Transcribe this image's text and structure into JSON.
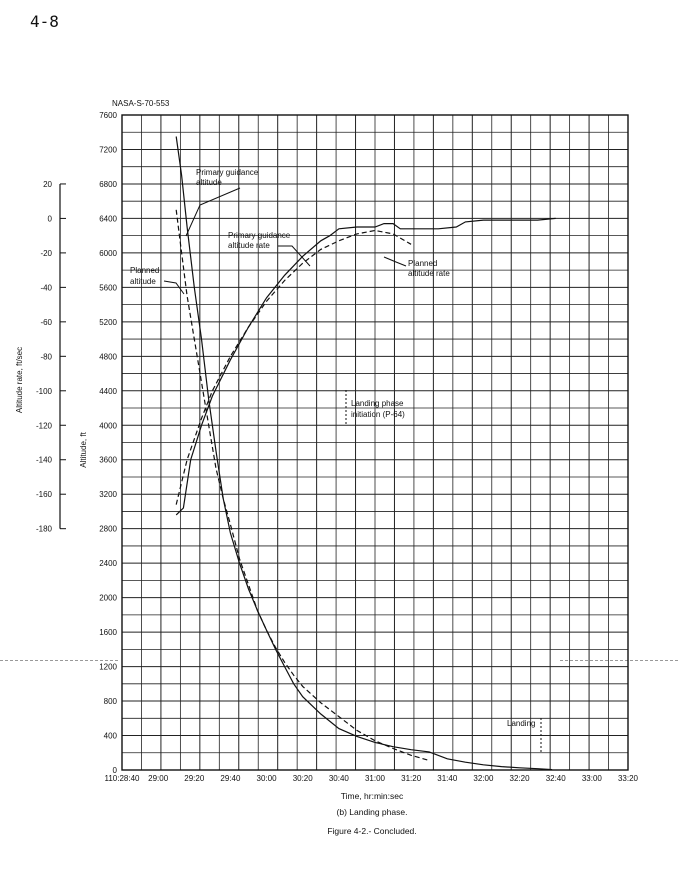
{
  "page_number": "4-8",
  "document_id": "NASA-S-70-553",
  "caption": {
    "x_axis_title": "Time, hr:min:sec",
    "subcaption": "(b) Landing phase.",
    "figure": "Figure 4-2.- Concluded."
  },
  "annotations": {
    "primary_alt": [
      "Primary guidance",
      "altitude"
    ],
    "planned_alt": [
      "Planned",
      "altitude"
    ],
    "primary_rate": [
      "Primary guidance",
      "altitude rate"
    ],
    "planned_rate": [
      "Planned",
      "altitude rate"
    ],
    "landing_phase": [
      "Landing phase",
      "initiation (P-64)"
    ],
    "landing": "Landing"
  },
  "chart_data": {
    "type": "line",
    "xlabel": "Time, hr:min:sec",
    "x_tick_labels": [
      "110:28:40",
      "29:00",
      "29:20",
      "29:40",
      "30:00",
      "30:20",
      "30:40",
      "31:00",
      "31:20",
      "31:40",
      "32:00",
      "32:20",
      "32:40",
      "33:00",
      "33:20"
    ],
    "x_range_seconds_labels": [
      "110:28:40",
      "110:33:20"
    ],
    "altitude_axis": {
      "label": "Altitude, ft",
      "ticks": [
        0,
        400,
        800,
        1200,
        1600,
        2000,
        2400,
        2800,
        3200,
        3600,
        4000,
        4400,
        4800,
        5200,
        5600,
        6000,
        6400,
        6800,
        7200,
        7600
      ],
      "range": [
        0,
        7600
      ]
    },
    "rate_axis": {
      "label": "Altitude rate, ft/sec",
      "ticks": [
        20,
        0,
        -20,
        -40,
        -60,
        -80,
        -100,
        -120,
        -140,
        -160,
        -180
      ],
      "range": [
        -180,
        20
      ]
    },
    "grid": true,
    "series": [
      {
        "name": "Primary guidance altitude",
        "axis": "altitude",
        "style": "solid",
        "x": [
          "110:29:10",
          "110:29:13",
          "110:29:16",
          "110:29:20",
          "110:29:24",
          "110:29:28",
          "110:29:32",
          "110:29:36",
          "110:29:40",
          "110:29:45",
          "110:29:50",
          "110:29:55",
          "110:30:00",
          "110:30:05",
          "110:30:10",
          "110:30:15",
          "110:30:20",
          "110:30:30",
          "110:30:40",
          "110:30:50",
          "110:31:00",
          "110:31:10",
          "110:31:20",
          "110:31:30",
          "110:31:40",
          "110:31:50",
          "110:32:00",
          "110:32:10",
          "110:32:20",
          "110:32:30",
          "110:32:38"
        ],
        "y": [
          7350,
          6900,
          6300,
          5600,
          5000,
          4300,
          3700,
          3150,
          2750,
          2400,
          2100,
          1850,
          1620,
          1400,
          1200,
          1000,
          850,
          650,
          480,
          390,
          320,
          270,
          235,
          210,
          130,
          90,
          60,
          40,
          25,
          15,
          5
        ]
      },
      {
        "name": "Planned altitude",
        "axis": "altitude",
        "style": "dashed",
        "x": [
          "110:29:10",
          "110:29:13",
          "110:29:16",
          "110:29:20",
          "110:29:24",
          "110:29:28",
          "110:29:32",
          "110:29:36",
          "110:29:40",
          "110:29:45",
          "110:29:50",
          "110:29:55",
          "110:30:00",
          "110:30:05",
          "110:30:10",
          "110:30:15",
          "110:30:20",
          "110:30:30",
          "110:30:40",
          "110:30:50",
          "110:31:00",
          "110:31:10",
          "110:31:20",
          "110:31:30"
        ],
        "y": [
          6500,
          6000,
          5500,
          5000,
          4500,
          4000,
          3500,
          3150,
          2850,
          2450,
          2150,
          1850,
          1620,
          1420,
          1250,
          1100,
          970,
          780,
          620,
          460,
          340,
          250,
          170,
          110
        ]
      },
      {
        "name": "Primary guidance altitude rate",
        "axis": "rate",
        "style": "solid",
        "x": [
          "110:29:10",
          "110:29:14",
          "110:29:18",
          "110:29:24",
          "110:29:30",
          "110:29:40",
          "110:29:50",
          "110:30:00",
          "110:30:10",
          "110:30:20",
          "110:30:30",
          "110:30:35",
          "110:30:40",
          "110:30:50",
          "110:31:00",
          "110:31:05",
          "110:31:10",
          "110:31:14",
          "110:31:18",
          "110:31:25",
          "110:31:35",
          "110:31:45",
          "110:31:50",
          "110:32:00",
          "110:32:10",
          "110:32:20",
          "110:32:30",
          "110:32:40"
        ],
        "y": [
          -172,
          -168,
          -140,
          -120,
          -103,
          -82,
          -63,
          -46,
          -33,
          -22,
          -13,
          -10,
          -6,
          -5,
          -5,
          -3,
          -3,
          -6,
          -6,
          -6,
          -6,
          -5,
          -2,
          -1,
          -1,
          -1,
          -1,
          0
        ]
      },
      {
        "name": "Planned altitude rate",
        "axis": "rate",
        "style": "dashed",
        "x": [
          "110:29:10",
          "110:29:16",
          "110:29:24",
          "110:29:30",
          "110:29:40",
          "110:29:50",
          "110:30:00",
          "110:30:10",
          "110:30:20",
          "110:30:30",
          "110:30:40",
          "110:30:50",
          "110:31:00",
          "110:31:10",
          "110:31:20"
        ],
        "y": [
          -166,
          -140,
          -116,
          -100,
          -80,
          -63,
          -48,
          -36,
          -26,
          -18,
          -13,
          -9,
          -7,
          -9,
          -15
        ]
      }
    ]
  }
}
